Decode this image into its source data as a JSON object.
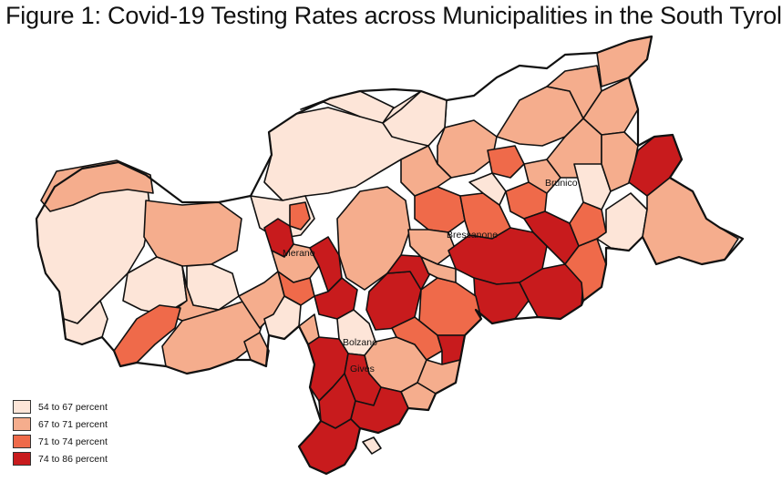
{
  "title": "Figure 1: Covid-19 Testing Rates across Municipalities in the South Tyrol",
  "colors": {
    "c1": "#fde5d8",
    "c2": "#f5ad8d",
    "c3": "#ef6a4a",
    "c4": "#c81b1d"
  },
  "legend": [
    {
      "label": "54 to 67 percent",
      "color": "#fde5d8"
    },
    {
      "label": "67 to 71 percent",
      "color": "#f5ad8d"
    },
    {
      "label": "71 to 74 percent",
      "color": "#ef6a4a"
    },
    {
      "label": "74 to 86 percent",
      "color": "#c81b1d"
    }
  ],
  "cities": {
    "brunico": "Brunico",
    "bressanone": "Bressanone",
    "merano": "Merano",
    "bolzano": "Bolzano",
    "gives": "Gives"
  }
}
